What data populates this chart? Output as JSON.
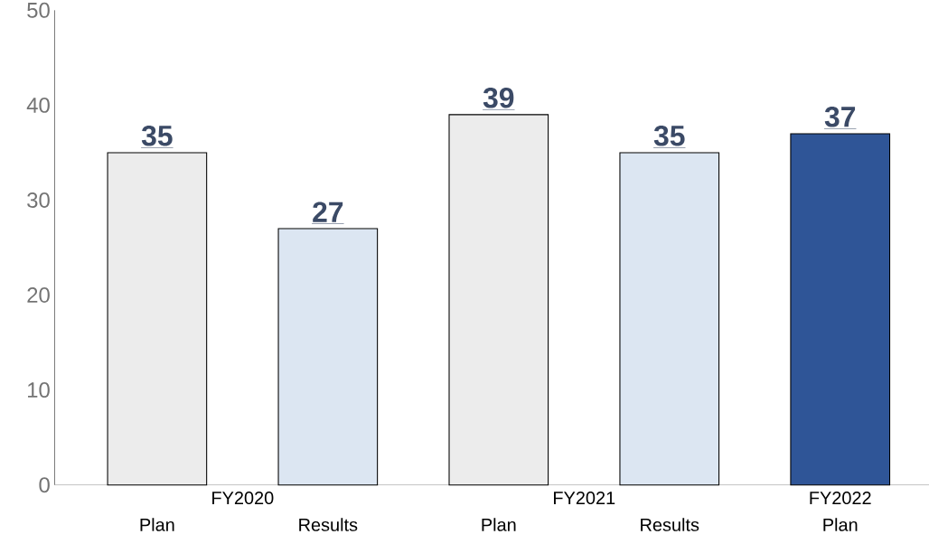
{
  "chart_data": {
    "type": "bar",
    "categories": [
      "Plan",
      "Results",
      "Plan",
      "Results",
      "Plan"
    ],
    "values": [
      35,
      27,
      39,
      35,
      37
    ],
    "colors": [
      "#ececec",
      "#dce6f2",
      "#ececec",
      "#dce6f2",
      "#2f5597"
    ],
    "data_labels": true,
    "ylim": [
      0,
      50
    ],
    "yticks": [
      0,
      10,
      20,
      30,
      40,
      50
    ],
    "annotations": [
      "FY2020",
      "FY2021",
      "FY2022"
    ]
  }
}
